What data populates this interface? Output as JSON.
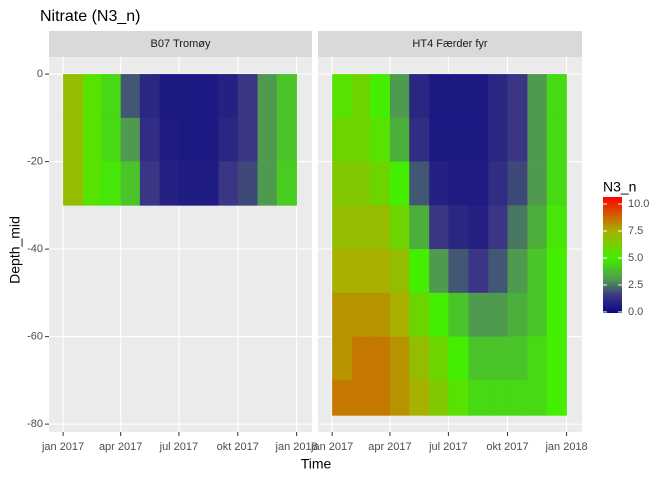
{
  "chart_data": {
    "type": "heatmap",
    "title": "Nitrate (N3_n)",
    "x_label": "Time",
    "y_label": "Depth_mid",
    "xlim": [
      "2016-12-10",
      "2018-01-25"
    ],
    "xticks": [
      {
        "value": "2017-01-01",
        "label": "jan 2017"
      },
      {
        "value": "2017-04-01",
        "label": "apr 2017"
      },
      {
        "value": "2017-07-01",
        "label": "jul 2017"
      },
      {
        "value": "2017-10-01",
        "label": "okt 2017"
      },
      {
        "value": "2018-01-01",
        "label": "jan 2018"
      }
    ],
    "ylim": [
      -81.8,
      3.9
    ],
    "yticks": [
      0,
      -20,
      -40,
      -60,
      -80
    ],
    "grid": true,
    "legend_title": "N3_n",
    "fill_lim": [
      -0.1,
      10.65
    ],
    "fill_ticks": [
      {
        "value": 10,
        "label": "10.0"
      },
      7.5,
      {
        "value": 5,
        "label": "5.0"
      },
      2.5,
      {
        "value": 0,
        "label": "0.0"
      }
    ],
    "palette": [
      {
        "value": 0,
        "color": "#0b0b80"
      },
      {
        "value": 1.5,
        "color": "#3a3585"
      },
      {
        "value": 3,
        "color": "#4f9a4f"
      },
      {
        "value": 5,
        "color": "#44ee00"
      },
      {
        "value": 7.5,
        "color": "#a8b000"
      },
      {
        "value": 10.65,
        "color": "#ff0000"
      }
    ],
    "panels": [
      {
        "strip": "B07 Tromøy",
        "x": [
          "2017-01-01",
          "2017-02-01",
          "2017-03-01",
          "2017-04-01",
          "2017-05-01",
          "2017-06-01",
          "2017-07-01",
          "2017-08-01",
          "2017-09-01",
          "2017-10-01",
          "2017-11-01",
          "2017-12-01",
          "2018-01-01"
        ],
        "depths": [
          0,
          -10,
          -20,
          -30
        ],
        "values": [
          [
            7,
            5.5,
            4.5,
            2,
            1,
            0.5,
            0.5,
            0.5,
            0.8,
            1.5,
            3,
            4
          ],
          [
            7,
            5.5,
            4.5,
            3,
            1.2,
            0.6,
            0.5,
            0.5,
            1,
            1.5,
            3,
            4
          ],
          [
            7,
            5.5,
            4.8,
            4,
            1.5,
            0.8,
            0.6,
            0.6,
            1.5,
            1.8,
            3,
            4.2
          ]
        ]
      },
      {
        "strip": "HT4 Færder fyr",
        "x": [
          "2017-01-01",
          "2017-02-01",
          "2017-03-01",
          "2017-04-01",
          "2017-05-01",
          "2017-06-01",
          "2017-07-01",
          "2017-08-01",
          "2017-09-01",
          "2017-10-01",
          "2017-11-01",
          "2017-12-01",
          "2018-01-01"
        ],
        "depths": [
          0,
          -10,
          -20,
          -30,
          -40,
          -50,
          -60,
          -70,
          -78
        ],
        "values": [
          [
            5.5,
            6,
            5,
            3,
            1,
            0.5,
            0.5,
            0.5,
            1,
            1.5,
            3,
            4.5
          ],
          [
            6,
            6,
            5.5,
            3.5,
            1.2,
            0.5,
            0.5,
            0.5,
            1,
            1.5,
            3,
            4.5
          ],
          [
            6.5,
            6.5,
            6,
            5,
            2,
            0.8,
            0.6,
            0.6,
            1.2,
            1.8,
            3,
            4.5
          ],
          [
            7,
            7,
            7,
            6,
            3.5,
            1.5,
            1,
            0.8,
            1.5,
            2.5,
            3.5,
            4.8
          ],
          [
            7.5,
            7.5,
            7.5,
            7,
            5,
            3,
            2,
            1.5,
            2,
            3,
            4,
            5
          ],
          [
            8,
            8,
            8,
            7.5,
            6,
            5,
            4,
            3,
            3,
            3.5,
            4,
            5
          ],
          [
            8,
            8.5,
            8.5,
            8,
            7,
            6,
            5,
            4,
            4,
            4,
            4.5,
            5
          ],
          [
            8.5,
            8.5,
            8.5,
            8,
            7.5,
            6.5,
            5.5,
            4.5,
            4.5,
            4.5,
            4.5,
            5
          ]
        ]
      }
    ]
  }
}
